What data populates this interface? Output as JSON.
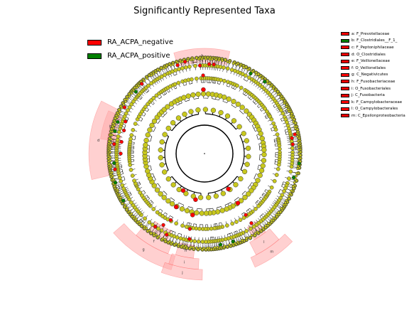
{
  "title": "Significantly Represented Taxa",
  "colors": {
    "negative": "#ff0000",
    "positive": "#008000",
    "neutral": "#c8c81e",
    "highlight": "#ffaaaa"
  },
  "groups": [
    {
      "label": "RA_ACPA_negative",
      "color": "#ff0000"
    },
    {
      "label": "RA_ACPA_positive",
      "color": "#008000"
    }
  ],
  "taxa_key": [
    {
      "letter": "a",
      "label": "a: F_Prevotellaceae",
      "color": "#ff0000"
    },
    {
      "letter": "b",
      "label": "b: F_Clostridiales__F_1_",
      "color": "#008000"
    },
    {
      "letter": "c",
      "label": "c: F_Peptoniphilaceae",
      "color": "#ff0000"
    },
    {
      "letter": "d",
      "label": "d: O_Clostridiales",
      "color": "#ff0000"
    },
    {
      "letter": "e",
      "label": "e: F_Veillonellaceae",
      "color": "#ff0000"
    },
    {
      "letter": "f",
      "label": "f: O_Veillonellales",
      "color": "#ff0000"
    },
    {
      "letter": "g",
      "label": "g: C_Negativicutes",
      "color": "#ff0000"
    },
    {
      "letter": "h",
      "label": "h: F_Fusobacteriaceae",
      "color": "#ff0000"
    },
    {
      "letter": "i",
      "label": "i: O_Fusobacteriales",
      "color": "#ff0000"
    },
    {
      "letter": "j",
      "label": "j: C_Fusobacteria",
      "color": "#ff0000"
    },
    {
      "letter": "k",
      "label": "k: F_Campylobacteraceae",
      "color": "#ff0000"
    },
    {
      "letter": "l",
      "label": "l: O_Campylobacterales",
      "color": "#ff0000"
    },
    {
      "letter": "m",
      "label": "m: C_Epsilonproteobacteria",
      "color": "#ff0000"
    }
  ],
  "highlights": [
    {
      "letter": "a",
      "start_deg": -17,
      "end_deg": 14,
      "inner_r": 128,
      "outer_r": 148
    },
    {
      "letter": "b",
      "start_deg": -82,
      "end_deg": -66,
      "inner_r": 128,
      "outer_r": 148
    },
    {
      "letter": "c",
      "start_deg": -86,
      "end_deg": -78,
      "inner_r": 120,
      "outer_r": 138
    },
    {
      "letter": "d",
      "start_deg": -103,
      "end_deg": -63,
      "inner_r": 138,
      "outer_r": 163
    },
    {
      "letter": "e",
      "start_deg": 203,
      "end_deg": 216,
      "inner_r": 118,
      "outer_r": 135
    },
    {
      "letter": "f",
      "start_deg": 200,
      "end_deg": 220,
      "inner_r": 135,
      "outer_r": 150
    },
    {
      "letter": "g",
      "start_deg": 196,
      "end_deg": 229,
      "inner_r": 150,
      "outer_r": 170
    },
    {
      "letter": "h",
      "start_deg": 186,
      "end_deg": 196,
      "inner_r": 130,
      "outer_r": 148
    },
    {
      "letter": "i",
      "start_deg": 183,
      "end_deg": 198,
      "inner_r": 148,
      "outer_r": 163
    },
    {
      "letter": "j",
      "start_deg": 181,
      "end_deg": 200,
      "inner_r": 163,
      "outer_r": 178
    },
    {
      "letter": "k",
      "start_deg": 142,
      "end_deg": 150,
      "inner_r": 120,
      "outer_r": 140
    },
    {
      "letter": "l",
      "start_deg": 139,
      "end_deg": 153,
      "inner_r": 140,
      "outer_r": 160
    },
    {
      "letter": "m",
      "start_deg": 135,
      "end_deg": 156,
      "inner_r": 160,
      "outer_r": 175
    }
  ],
  "enriched_nodes": [
    {
      "deg": -1,
      "r": 90,
      "group": "negative"
    },
    {
      "deg": -1,
      "r": 110,
      "group": "negative"
    },
    {
      "deg": 3,
      "r": 126,
      "group": "negative"
    },
    {
      "deg": -3,
      "r": 124,
      "group": "negative"
    },
    {
      "deg": 6,
      "r": 126,
      "group": "negative"
    },
    {
      "deg": -74,
      "r": 118,
      "group": "negative"
    },
    {
      "deg": -76,
      "r": 130,
      "group": "positive"
    },
    {
      "deg": -70,
      "r": 130,
      "group": "positive"
    },
    {
      "deg": -82,
      "r": 118,
      "group": "negative"
    },
    {
      "deg": -84,
      "r": 128,
      "group": "negative"
    },
    {
      "deg": -90,
      "r": 118,
      "group": "negative"
    },
    {
      "deg": -96,
      "r": 128,
      "group": "positive"
    },
    {
      "deg": -100,
      "r": 128,
      "group": "negative"
    },
    {
      "deg": -68,
      "r": 120,
      "group": "negative"
    },
    {
      "deg": 210,
      "r": 60,
      "group": "negative"
    },
    {
      "deg": 208,
      "r": 85,
      "group": "negative"
    },
    {
      "deg": 207,
      "r": 105,
      "group": "negative"
    },
    {
      "deg": 210,
      "r": 116,
      "group": "negative"
    },
    {
      "deg": 214,
      "r": 124,
      "group": "negative"
    },
    {
      "deg": 205,
      "r": 126,
      "group": "negative"
    },
    {
      "deg": 191,
      "r": 66,
      "group": "negative"
    },
    {
      "deg": 191,
      "r": 88,
      "group": "negative"
    },
    {
      "deg": 191,
      "r": 108,
      "group": "negative"
    },
    {
      "deg": 190,
      "r": 122,
      "group": "negative"
    },
    {
      "deg": 146,
      "r": 60,
      "group": "negative"
    },
    {
      "deg": 146,
      "r": 84,
      "group": "negative"
    },
    {
      "deg": 146,
      "r": 104,
      "group": "negative"
    },
    {
      "deg": 146,
      "r": 118,
      "group": "negative"
    },
    {
      "deg": 80,
      "r": 125,
      "group": "negative"
    },
    {
      "deg": 84,
      "r": 125,
      "group": "negative"
    },
    {
      "deg": 78,
      "r": 130,
      "group": "negative"
    },
    {
      "deg": 30,
      "r": 130,
      "group": "positive"
    },
    {
      "deg": 40,
      "r": 132,
      "group": "positive"
    },
    {
      "deg": 105,
      "r": 130,
      "group": "positive"
    },
    {
      "deg": 170,
      "r": 130,
      "group": "positive"
    },
    {
      "deg": 162,
      "r": 130,
      "group": "positive"
    },
    {
      "deg": 240,
      "r": 132,
      "group": "positive"
    },
    {
      "deg": 252,
      "r": 132,
      "group": "positive"
    },
    {
      "deg": 300,
      "r": 130,
      "group": "negative"
    },
    {
      "deg": 312,
      "r": 130,
      "group": "positive"
    },
    {
      "deg": 318,
      "r": 132,
      "group": "negative"
    },
    {
      "deg": 343,
      "r": 130,
      "group": "negative"
    },
    {
      "deg": 348,
      "r": 132,
      "group": "negative"
    },
    {
      "deg": 96,
      "r": 134,
      "group": "positive"
    }
  ]
}
